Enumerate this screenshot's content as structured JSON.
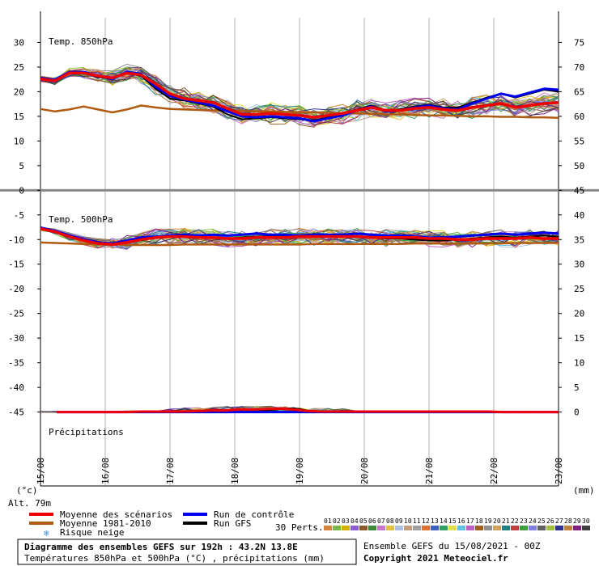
{
  "chart_data": {
    "type": "line",
    "x_ticks": [
      "15/08",
      "16/08",
      "17/08",
      "18/08",
      "19/08",
      "20/08",
      "21/08",
      "22/08",
      "23/08"
    ],
    "left_axis": {
      "ylim": [
        -60,
        35
      ],
      "ticks": [
        30,
        25,
        20,
        15,
        10,
        5,
        0,
        -5,
        -10,
        -15,
        -20,
        -25,
        -30,
        -35,
        -40,
        -45
      ]
    },
    "right_axis": {
      "ylim": [
        -15,
        80
      ],
      "ticks": [
        75,
        70,
        65,
        60,
        55,
        50,
        45,
        40,
        35,
        30,
        25,
        20,
        15,
        10,
        5,
        0
      ]
    },
    "left_unit": "(°c)",
    "right_unit": "(mm)",
    "altitude": "Alt. 79m",
    "panels": {
      "t850": {
        "label": "Temp. 850hPa",
        "mean": [
          22.6,
          22.2,
          23.8,
          23.8,
          23.2,
          22.8,
          23.8,
          23.4,
          21.6,
          19.6,
          18.6,
          18.2,
          17.8,
          16.6,
          15.4,
          15.4,
          15.6,
          15.4,
          15.2,
          14.8,
          15.2,
          15.6,
          16.2,
          16.8,
          16.2,
          16.2,
          16.6,
          16.8,
          16.4,
          16.2,
          16.8,
          17.2,
          17.6,
          16.8,
          17.2,
          17.6,
          17.8
        ],
        "control": [
          22.8,
          22.4,
          24.0,
          24.0,
          23.2,
          22.6,
          24.0,
          23.6,
          21.0,
          19.2,
          18.4,
          17.8,
          17.2,
          16.0,
          15.0,
          14.8,
          15.0,
          14.8,
          14.6,
          14.0,
          14.6,
          15.2,
          16.2,
          17.0,
          16.0,
          16.2,
          16.8,
          17.2,
          16.6,
          16.4,
          17.6,
          18.6,
          19.6,
          19.0,
          19.8,
          20.6,
          20.4
        ],
        "gfs": [
          22.8,
          22.2,
          24.0,
          23.8,
          23.0,
          22.6,
          23.8,
          23.2,
          20.6,
          18.6,
          18.2,
          17.6,
          17.0,
          15.4,
          14.4,
          14.6,
          14.8,
          14.6,
          14.4,
          14.2,
          14.8,
          15.4,
          16.4,
          17.2,
          16.2,
          16.4,
          17.0,
          17.4,
          16.8,
          16.8,
          17.8,
          18.8,
          19.6,
          18.8,
          19.6,
          20.4,
          20.0
        ],
        "climatology": [
          16.5,
          16.0,
          16.4,
          17.0,
          16.4,
          15.8,
          16.4,
          17.2,
          16.8,
          16.5,
          16.4,
          16.3,
          16.2,
          16.2,
          16.1,
          16.0,
          16.0,
          15.9,
          15.8,
          15.8,
          15.7,
          15.6,
          15.6,
          15.5,
          15.4,
          15.4,
          15.3,
          15.2,
          15.2,
          15.1,
          15.0,
          15.0,
          14.9,
          14.9,
          14.8,
          14.8,
          14.7
        ]
      },
      "t500": {
        "label": "Temp. 500hPa",
        "mean": [
          -7.8,
          -8.4,
          -9.4,
          -10.2,
          -10.8,
          -11.0,
          -10.6,
          -10.0,
          -9.6,
          -9.4,
          -9.4,
          -9.6,
          -9.6,
          -9.8,
          -9.8,
          -9.6,
          -9.6,
          -9.6,
          -9.4,
          -9.4,
          -9.4,
          -9.4,
          -9.4,
          -9.6,
          -9.6,
          -9.6,
          -9.6,
          -9.8,
          -9.8,
          -10.0,
          -10.0,
          -9.8,
          -9.8,
          -9.8,
          -9.6,
          -9.8,
          -9.8
        ],
        "control": [
          -7.6,
          -8.2,
          -9.2,
          -10.0,
          -10.6,
          -10.8,
          -10.2,
          -9.6,
          -9.4,
          -9.2,
          -9.0,
          -9.2,
          -9.0,
          -9.2,
          -9.0,
          -8.8,
          -9.0,
          -9.0,
          -9.2,
          -9.0,
          -9.0,
          -9.0,
          -8.8,
          -9.0,
          -9.2,
          -9.2,
          -9.4,
          -9.6,
          -9.6,
          -9.4,
          -9.2,
          -9.0,
          -8.8,
          -9.0,
          -8.8,
          -8.6,
          -8.8
        ],
        "gfs": [
          -7.8,
          -8.4,
          -9.4,
          -10.2,
          -10.8,
          -10.8,
          -10.2,
          -9.6,
          -9.6,
          -9.4,
          -9.4,
          -9.6,
          -9.6,
          -9.8,
          -9.6,
          -9.4,
          -9.4,
          -9.4,
          -9.2,
          -9.2,
          -9.2,
          -9.2,
          -9.4,
          -9.6,
          -9.8,
          -9.8,
          -10.0,
          -10.2,
          -10.2,
          -10.0,
          -9.8,
          -9.6,
          -9.4,
          -9.6,
          -9.4,
          -9.2,
          -9.4
        ],
        "climatology": [
          -10.6,
          -10.7,
          -10.8,
          -10.9,
          -11.0,
          -11.0,
          -11.1,
          -11.1,
          -11.1,
          -11.1,
          -11.0,
          -11.0,
          -11.0,
          -11.0,
          -11.0,
          -11.0,
          -11.0,
          -11.0,
          -11.0,
          -10.9,
          -10.9,
          -10.9,
          -10.9,
          -10.9,
          -10.9,
          -10.9,
          -10.8,
          -10.8,
          -10.8,
          -10.8,
          -10.8,
          -10.8,
          -10.8,
          -10.7,
          -10.7,
          -10.7,
          -10.7
        ]
      },
      "precip": {
        "label": "Précipitations",
        "mean": [
          0.0,
          0.0,
          0.0,
          0.0,
          0.0,
          0.0,
          0.1,
          0.1,
          0.1,
          0.1,
          0.2,
          0.3,
          0.3,
          0.5,
          0.5,
          0.6,
          0.7,
          0.5,
          0.2,
          0.1,
          0.1,
          0.1,
          0.1,
          0.1,
          0.1,
          0.1,
          0.1,
          0.1,
          0.1,
          0.1,
          0.1,
          0.1,
          0.0,
          0.0,
          0.0,
          0.0,
          0.0
        ],
        "control": [
          0.0,
          0.0,
          0.0,
          0.0,
          0.0,
          0.0,
          0.0,
          0.0,
          0.0,
          0.0,
          0.0,
          0.0,
          0.0,
          0.0,
          0.0,
          0.0,
          0.0,
          0.0,
          0.0,
          0.0,
          0.0,
          0.0,
          0.0,
          0.0,
          0.0,
          0.0,
          0.0,
          0.0,
          0.0,
          0.0,
          0.0,
          0.0,
          0.0,
          0.0,
          0.0,
          0.0,
          0.0
        ],
        "gfs": [
          0.0,
          0.0,
          0.0,
          0.0,
          0.0,
          0.0,
          0.0,
          0.0,
          0.0,
          0.0,
          0.0,
          0.0,
          0.0,
          0.0,
          0.0,
          0.3,
          0.6,
          0.8,
          0.3,
          0.0,
          0.0,
          0.0,
          0.0,
          0.0,
          0.0,
          0.0,
          0.0,
          0.0,
          0.0,
          0.0,
          0.0,
          0.0,
          0.0,
          0.0,
          0.0,
          0.0,
          0.0
        ]
      }
    },
    "legend": {
      "mean": "Moyenne des scénarios",
      "climatology": "Moyenne 1981-2010",
      "snow": "Risque neige",
      "control": "Run de contrôle",
      "gfs": "Run GFS",
      "perts": "30 Perts.",
      "perts_ids": [
        "01",
        "02",
        "03",
        "04",
        "05",
        "06",
        "07",
        "08",
        "09",
        "10",
        "11",
        "12",
        "13",
        "14",
        "15",
        "16",
        "17",
        "18",
        "19",
        "20",
        "21",
        "22",
        "23",
        "24",
        "25",
        "26",
        "27",
        "28",
        "29",
        "30"
      ]
    },
    "series_colors": {
      "mean": "#ee0000",
      "control": "#0000ee",
      "gfs": "#000000",
      "climatology": "#b05a10",
      "perts": [
        "#d4823c",
        "#7ab648",
        "#d4b000",
        "#8a5cd0",
        "#8a5a2a",
        "#3a8a3a",
        "#c878c8",
        "#e0c040",
        "#b0c0e0",
        "#c0a080",
        "#a0a0a0",
        "#e07030",
        "#4060c0",
        "#30a060",
        "#e0e040",
        "#60c0e0",
        "#c060c0",
        "#a06020",
        "#909090",
        "#d0a060",
        "#208080",
        "#c04040",
        "#40a040",
        "#8080e0",
        "#606060",
        "#a0c040",
        "#303090",
        "#c08040",
        "#802080",
        "#404040"
      ]
    },
    "footer": {
      "title": "Diagramme des ensembles GEFS sur 192h : 43.2N 13.8E",
      "subtitle": "Températures 850hPa et 500hPa (°C) , précipitations (mm)",
      "run": "Ensemble GEFS du 15/08/2021 - 00Z",
      "copyright": "Copyright 2021 Meteociel.fr"
    }
  }
}
